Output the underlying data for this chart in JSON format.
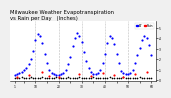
{
  "title": "Milwaukee Weather Evapotranspiration vs Rain per Day (Inches)",
  "title_fontsize": 3.8,
  "background_color": "#f0f0f0",
  "plot_bg_color": "#ffffff",
  "legend_labels": [
    "ET",
    "Rain"
  ],
  "legend_colors": [
    "blue",
    "red"
  ],
  "y_labels": [
    "0",
    ".1",
    ".2",
    ".3",
    ".4",
    ".5"
  ],
  "y_values": [
    0.0,
    0.1,
    0.2,
    0.3,
    0.4,
    0.5
  ],
  "ylim": [
    -0.01,
    0.56
  ],
  "xlim": [
    -1,
    62
  ],
  "num_days": 60,
  "grid_color": "#bbbbbb",
  "dot_size_blue": 2.5,
  "dot_size_red": 2.5,
  "dot_size_black": 1.5,
  "et_x": [
    1,
    2,
    3,
    4,
    5,
    6,
    7,
    8,
    9,
    10,
    11,
    12,
    13,
    14,
    15,
    16,
    17,
    18,
    19,
    20,
    21,
    22,
    23,
    24,
    25,
    26,
    27,
    28,
    29,
    30,
    31,
    32,
    33,
    34,
    35,
    36,
    37,
    38,
    39,
    40,
    41,
    42,
    43,
    44,
    45,
    46,
    47,
    48,
    49,
    50,
    51,
    52,
    53,
    54,
    55,
    56,
    57,
    58,
    59,
    60
  ],
  "et_y": [
    0.05,
    0.06,
    0.07,
    0.08,
    0.1,
    0.12,
    0.15,
    0.2,
    0.28,
    0.38,
    0.44,
    0.42,
    0.35,
    0.25,
    0.16,
    0.1,
    0.07,
    0.06,
    0.05,
    0.05,
    0.06,
    0.07,
    0.1,
    0.15,
    0.22,
    0.32,
    0.4,
    0.45,
    0.42,
    0.36,
    0.27,
    0.18,
    0.12,
    0.08,
    0.06,
    0.06,
    0.07,
    0.1,
    0.16,
    0.25,
    0.35,
    0.42,
    0.4,
    0.34,
    0.25,
    0.16,
    0.09,
    0.07,
    0.06,
    0.06,
    0.07,
    0.1,
    0.16,
    0.24,
    0.31,
    0.38,
    0.42,
    0.4,
    0.33,
    0.24
  ],
  "rain_x": [
    2,
    7,
    13,
    16,
    20,
    29,
    34,
    39,
    44,
    48,
    53,
    58
  ],
  "rain_y": [
    0.03,
    0.05,
    0.08,
    0.04,
    0.03,
    0.06,
    0.04,
    0.07,
    0.05,
    0.03,
    0.06,
    0.08
  ],
  "black_x": [
    1,
    2,
    3,
    4,
    5,
    6,
    7,
    8,
    9,
    10,
    11,
    12,
    13,
    14,
    15,
    16,
    17,
    18,
    19,
    20,
    21,
    22,
    23,
    24,
    25,
    26,
    27,
    28,
    29,
    30,
    31,
    32,
    33,
    34,
    35,
    36,
    37,
    38,
    39,
    40,
    41,
    42,
    43,
    44,
    45,
    46,
    47,
    48,
    49,
    50,
    51,
    52,
    53,
    54,
    55,
    56,
    57,
    58,
    59,
    60
  ],
  "black_y": [
    0.02,
    0.02,
    0.02,
    0.03,
    0.02,
    0.02,
    0.02,
    0.03,
    0.02,
    0.02,
    0.02,
    0.02,
    0.03,
    0.02,
    0.02,
    0.02,
    0.02,
    0.02,
    0.03,
    0.02,
    0.02,
    0.02,
    0.02,
    0.03,
    0.02,
    0.02,
    0.02,
    0.02,
    0.03,
    0.02,
    0.02,
    0.02,
    0.02,
    0.02,
    0.03,
    0.02,
    0.02,
    0.02,
    0.02,
    0.02,
    0.02,
    0.03,
    0.02,
    0.02,
    0.02,
    0.02,
    0.02,
    0.03,
    0.02,
    0.02,
    0.02,
    0.02,
    0.02,
    0.02,
    0.03,
    0.02,
    0.02,
    0.02,
    0.02,
    0.02
  ],
  "vgrid_x": [
    10,
    20,
    30,
    40,
    50
  ],
  "xtick_positions": [
    1,
    5,
    10,
    15,
    20,
    25,
    30,
    35,
    40,
    45,
    50,
    55,
    60
  ],
  "xtick_labels": [
    "1",
    "",
    "10",
    "",
    "20",
    "",
    "30",
    "",
    "40",
    "",
    "50",
    "",
    "60"
  ]
}
